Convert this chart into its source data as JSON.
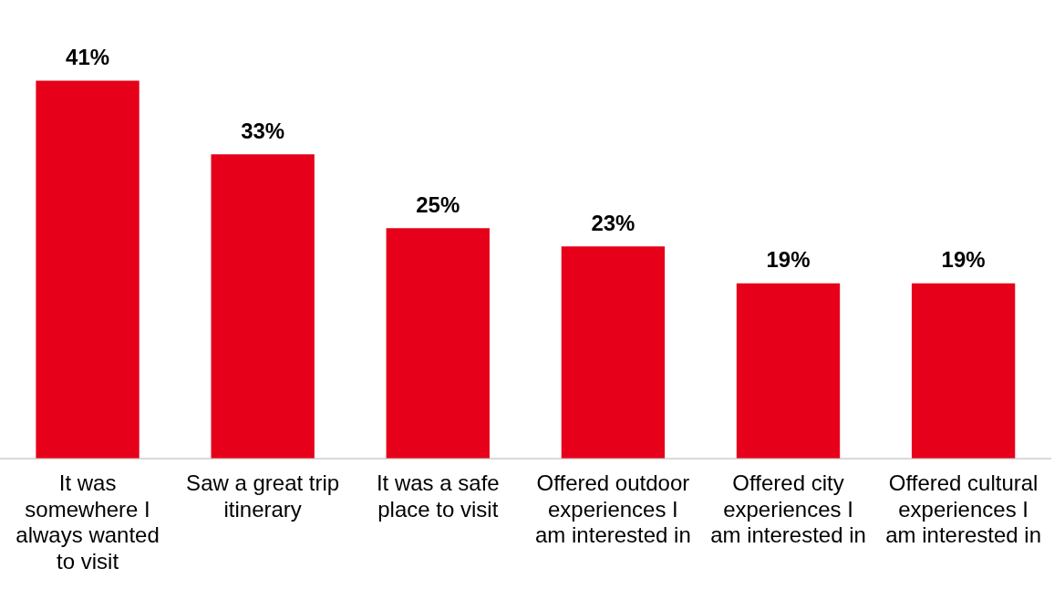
{
  "chart_data": {
    "type": "bar",
    "categories": [
      "It was somewhere I always wanted to visit",
      "Saw a great trip itinerary",
      "It was a safe place to visit",
      "Offered outdoor experiences I am interested in",
      "Offered city experiences I am interested in",
      "Offered cultural experiences I am interested in"
    ],
    "values": [
      41,
      33,
      25,
      23,
      19,
      19
    ],
    "value_labels": [
      "41%",
      "33%",
      "25%",
      "23%",
      "19%",
      "19%"
    ],
    "color": "#e60019",
    "grid": false,
    "legend": false
  }
}
